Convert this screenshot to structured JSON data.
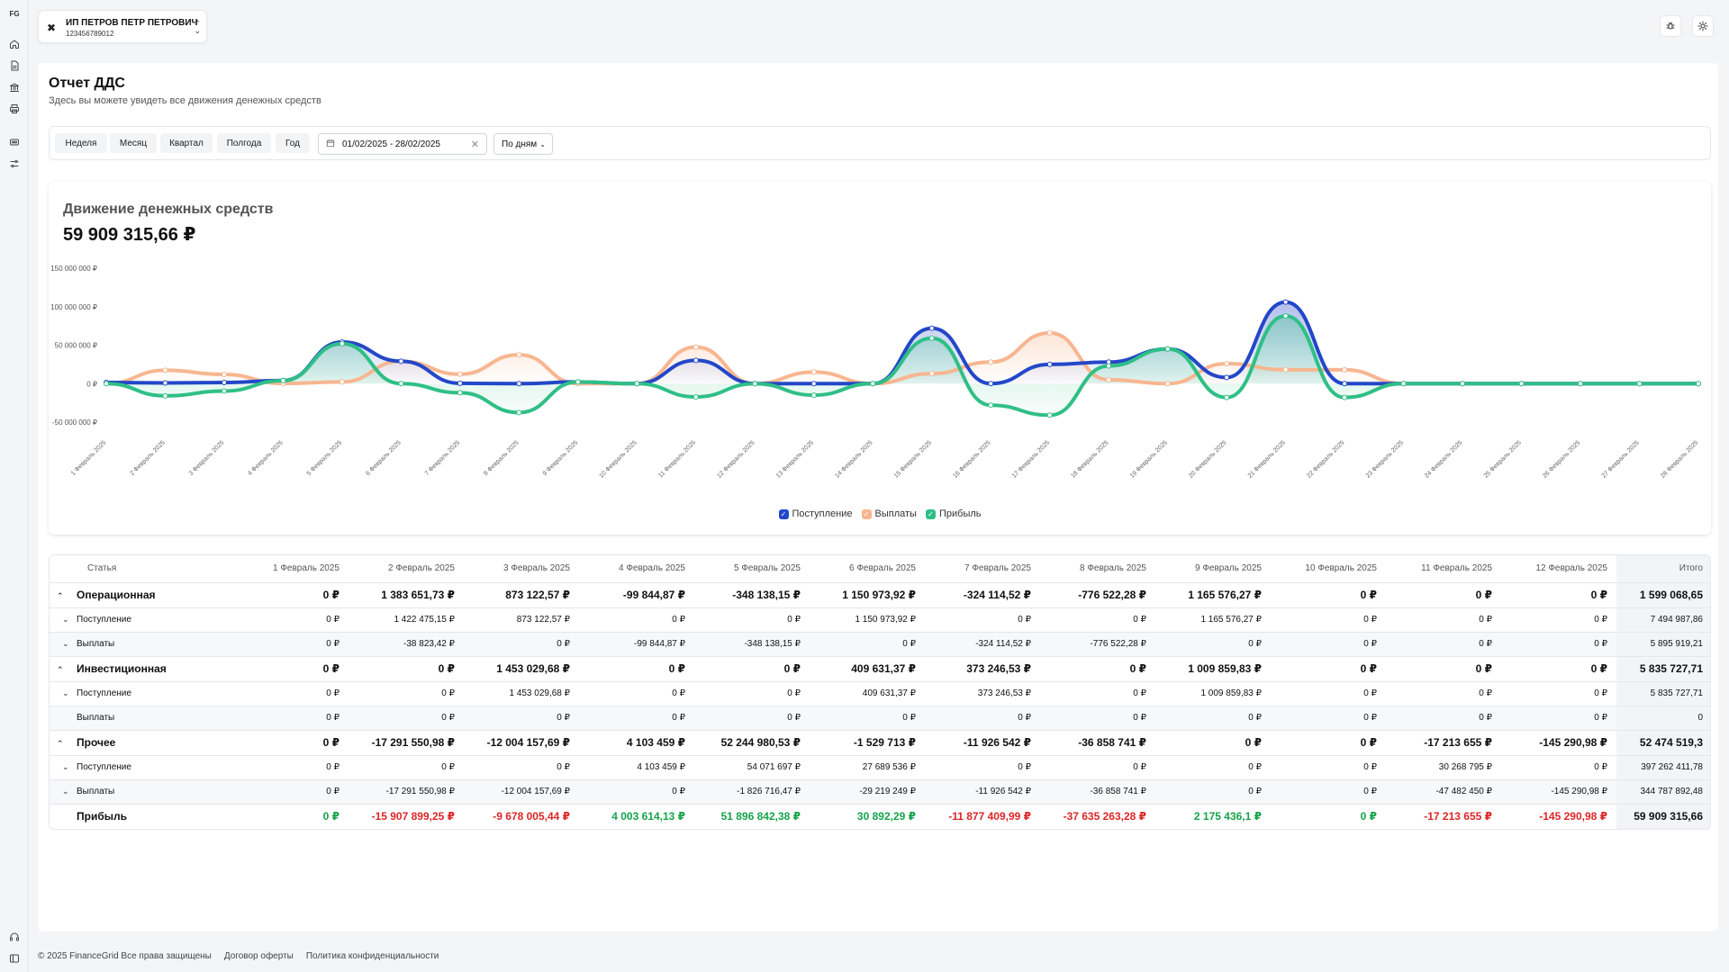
{
  "sidebar": {
    "logo": "FG",
    "icons": [
      "home-icon",
      "document-icon",
      "bank-icon",
      "printer-icon",
      "wallet-icon",
      "sliders-icon",
      "headset-icon",
      "panel-toggle-icon"
    ]
  },
  "header": {
    "company_name": "ИП ПЕТРОВ ПЕТР ПЕТРОВИЧ",
    "company_inn": "123456789012"
  },
  "page": {
    "title": "Отчет ДДС",
    "subtitle": "Здесь вы можете увидеть все движения денежных средств"
  },
  "filters": {
    "periods": [
      "Неделя",
      "Месяц",
      "Квартал",
      "Полгода",
      "Год"
    ],
    "date_range": "01/02/2025 - 28/02/2025",
    "grouping": "По дням"
  },
  "chart": {
    "title": "Движение денежных средств",
    "total": "59 909 315,66 ₽",
    "legend": [
      "Поступление",
      "Выплаты",
      "Прибыль"
    ]
  },
  "chart_data": {
    "type": "line",
    "x": [
      "1 Февраль 2025",
      "2 Февраль 2025",
      "3 Февраль 2025",
      "4 Февраль 2025",
      "5 Февраль 2025",
      "6 Февраль 2025",
      "7 Февраль 2025",
      "8 Февраль 2025",
      "9 Февраль 2025",
      "10 Февраль 2025",
      "11 Февраль 2025",
      "12 Февраль 2025",
      "13 Февраль 2025",
      "14 Февраль 2025",
      "15 Февраль 2025",
      "16 Февраль 2025",
      "17 Февраль 2025",
      "18 Февраль 2025",
      "19 Февраль 2025",
      "20 Февраль 2025",
      "21 Февраль 2025",
      "22 Февраль 2025",
      "23 Февраль 2025",
      "24 Февраль 2025",
      "25 Февраль 2025",
      "26 Февраль 2025",
      "27 Февраль 2025",
      "28 Февраль 2025"
    ],
    "y_ticks": [
      "150 000 000 ₽",
      "100 000 000 ₽",
      "50 000 000 ₽",
      "0 ₽",
      "-50 000 000 ₽"
    ],
    "ylim": [
      -50000000,
      150000000
    ],
    "colors": {
      "Поступление": "#2347c8",
      "Выплаты": "#f7b690",
      "Прибыль": "#2fbf86"
    },
    "series": [
      {
        "name": "Поступление",
        "values": [
          1422475,
          873123,
          1453030,
          4103459,
          54071697,
          29099880,
          373247,
          0,
          2175436,
          0,
          30268795,
          0,
          0,
          0,
          72000000,
          0,
          25000000,
          28000000,
          45000000,
          8000000,
          106000000,
          0,
          0,
          0,
          0,
          0,
          0,
          0
        ]
      },
      {
        "name": "Выплаты",
        "values": [
          0,
          17330374,
          12004158,
          99845,
          2174855,
          29029249,
          12250657,
          37635263,
          0,
          0,
          47482450,
          145291,
          15000000,
          0,
          13000000,
          28000000,
          66000000,
          5000000,
          0,
          26000000,
          18000000,
          18000000,
          0,
          0,
          0,
          0,
          0,
          0
        ]
      },
      {
        "name": "Прибыль",
        "values": [
          0,
          -15907899,
          -9678005,
          4003614,
          51896842,
          30892,
          -11877410,
          -37635263,
          2175436,
          0,
          -17213655,
          -145291,
          -15000000,
          0,
          59000000,
          -28000000,
          -41000000,
          23000000,
          45000000,
          -18000000,
          88000000,
          -18000000,
          0,
          0,
          0,
          0,
          0,
          0
        ]
      }
    ]
  },
  "table": {
    "headers": [
      "Статья",
      "1 Февраль 2025",
      "2 Февраль 2025",
      "3 Февраль 2025",
      "4 Февраль 2025",
      "5 Февраль 2025",
      "6 Февраль 2025",
      "7 Февраль 2025",
      "8 Февраль 2025",
      "9 Февраль 2025",
      "10 Февраль 2025",
      "11 Февраль 2025",
      "12 Февраль 2025",
      "Итого"
    ],
    "rows": [
      {
        "type": "group",
        "label": "Операционная",
        "cells": [
          "0 ₽",
          "1 383 651,73 ₽",
          "873 122,57 ₽",
          "-99 844,87 ₽",
          "-348 138,15 ₽",
          "1 150 973,92 ₽",
          "-324 114,52 ₽",
          "-776 522,28 ₽",
          "1 165 576,27 ₽",
          "0 ₽",
          "0 ₽",
          "0 ₽",
          "1 599 068,65"
        ]
      },
      {
        "type": "sub",
        "label": "Поступление",
        "cells": [
          "0 ₽",
          "1 422 475,15 ₽",
          "873 122,57 ₽",
          "0 ₽",
          "0 ₽",
          "1 150 973,92 ₽",
          "0 ₽",
          "0 ₽",
          "1 165 576,27 ₽",
          "0 ₽",
          "0 ₽",
          "0 ₽",
          "7 494 987,86"
        ]
      },
      {
        "type": "sub",
        "label": "Выплаты",
        "cells": [
          "0 ₽",
          "-38 823,42 ₽",
          "0 ₽",
          "-99 844,87 ₽",
          "-348 138,15 ₽",
          "0 ₽",
          "-324 114,52 ₽",
          "-776 522,28 ₽",
          "0 ₽",
          "0 ₽",
          "0 ₽",
          "0 ₽",
          "5 895 919,21"
        ]
      },
      {
        "type": "group",
        "label": "Инвестиционная",
        "cells": [
          "0 ₽",
          "0 ₽",
          "1 453 029,68 ₽",
          "0 ₽",
          "0 ₽",
          "409 631,37 ₽",
          "373 246,53 ₽",
          "0 ₽",
          "1 009 859,83 ₽",
          "0 ₽",
          "0 ₽",
          "0 ₽",
          "5 835 727,71"
        ]
      },
      {
        "type": "sub",
        "label": "Поступление",
        "cells": [
          "0 ₽",
          "0 ₽",
          "1 453 029,68 ₽",
          "0 ₽",
          "0 ₽",
          "409 631,37 ₽",
          "373 246,53 ₽",
          "0 ₽",
          "1 009 859,83 ₽",
          "0 ₽",
          "0 ₽",
          "0 ₽",
          "5 835 727,71"
        ]
      },
      {
        "type": "sub",
        "label": "Выплаты",
        "cells": [
          "0 ₽",
          "0 ₽",
          "0 ₽",
          "0 ₽",
          "0 ₽",
          "0 ₽",
          "0 ₽",
          "0 ₽",
          "0 ₽",
          "0 ₽",
          "0 ₽",
          "0 ₽",
          "0"
        ]
      },
      {
        "type": "group",
        "label": "Прочее",
        "cells": [
          "0 ₽",
          "-17 291 550,98 ₽",
          "-12 004 157,69 ₽",
          "4 103 459 ₽",
          "52 244 980,53 ₽",
          "-1 529 713 ₽",
          "-11 926 542 ₽",
          "-36 858 741 ₽",
          "0 ₽",
          "0 ₽",
          "-17 213 655 ₽",
          "-145 290,98 ₽",
          "52 474 519,3"
        ]
      },
      {
        "type": "sub",
        "label": "Поступление",
        "cells": [
          "0 ₽",
          "0 ₽",
          "0 ₽",
          "4 103 459 ₽",
          "54 071 697 ₽",
          "27 689 536 ₽",
          "0 ₽",
          "0 ₽",
          "0 ₽",
          "0 ₽",
          "30 268 795 ₽",
          "0 ₽",
          "397 262 411,78"
        ]
      },
      {
        "type": "sub",
        "label": "Выплаты",
        "cells": [
          "0 ₽",
          "-17 291 550,98 ₽",
          "-12 004 157,69 ₽",
          "0 ₽",
          "-1 826 716,47 ₽",
          "-29 219 249 ₽",
          "-11 926 542 ₽",
          "-36 858 741 ₽",
          "0 ₽",
          "0 ₽",
          "-47 482 450 ₽",
          "-145 290,98 ₽",
          "344 787 892,48"
        ]
      },
      {
        "type": "profit",
        "label": "Прибыль",
        "cells": [
          "0 ₽",
          "-15 907 899,25 ₽",
          "-9 678 005,44 ₽",
          "4 003 614,13 ₽",
          "51 896 842,38 ₽",
          "30 892,29 ₽",
          "-11 877 409,99 ₽",
          "-37 635 263,28 ₽",
          "2 175 436,1 ₽",
          "0 ₽",
          "-17 213 655 ₽",
          "-145 290,98 ₽",
          "59 909 315,66"
        ]
      }
    ]
  },
  "footer": {
    "copyright": "© 2025 FinanceGrid Все права защищены",
    "offer": "Договор оферты",
    "privacy": "Политика конфиденциальности"
  }
}
